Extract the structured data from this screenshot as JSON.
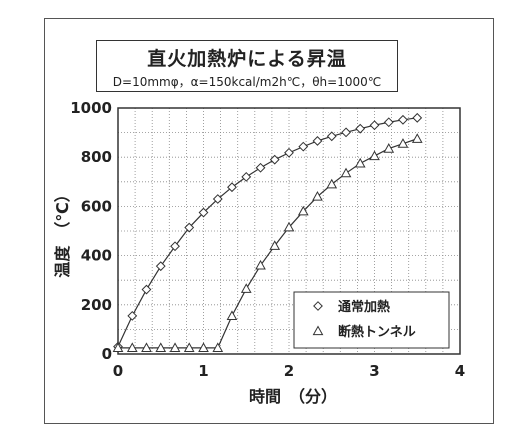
{
  "chart_data": {
    "type": "line",
    "title": "直火加熱炉による昇温",
    "subtitle": "D=10mmφ，α=150kcal/m2h℃，θh=1000℃",
    "xlabel": "時間　（分）",
    "ylabel": "温度　（℃）",
    "xlim": [
      0,
      4
    ],
    "ylim": [
      0,
      1000
    ],
    "xticks": [
      "0",
      "1",
      "2",
      "3",
      "4"
    ],
    "yticks": [
      "0",
      "200",
      "400",
      "600",
      "800",
      "1000"
    ],
    "grid": true,
    "legend_position": "bottom-right",
    "series": [
      {
        "name": "通常加熱",
        "marker": "diamond",
        "x": [
          0,
          0.167,
          0.333,
          0.5,
          0.667,
          0.833,
          1.0,
          1.167,
          1.333,
          1.5,
          1.667,
          1.833,
          2.0,
          2.167,
          2.333,
          2.5,
          2.667,
          2.833,
          3.0,
          3.167,
          3.333,
          3.5
        ],
        "y": [
          30,
          155,
          262,
          357,
          438,
          514,
          575,
          630,
          678,
          720,
          757,
          790,
          818,
          843,
          866,
          885,
          901,
          916,
          930,
          942,
          952,
          960
        ]
      },
      {
        "name": "断熱トンネル",
        "marker": "triangle",
        "x": [
          0,
          0.167,
          0.333,
          0.5,
          0.667,
          0.833,
          1.0,
          1.167,
          1.333,
          1.5,
          1.667,
          1.833,
          2.0,
          2.167,
          2.333,
          2.5,
          2.667,
          2.833,
          3.0,
          3.167,
          3.333,
          3.5
        ],
        "y": [
          25,
          25,
          25,
          25,
          25,
          25,
          25,
          25,
          155,
          265,
          360,
          440,
          515,
          580,
          640,
          690,
          735,
          775,
          805,
          835,
          855,
          875
        ]
      }
    ]
  }
}
